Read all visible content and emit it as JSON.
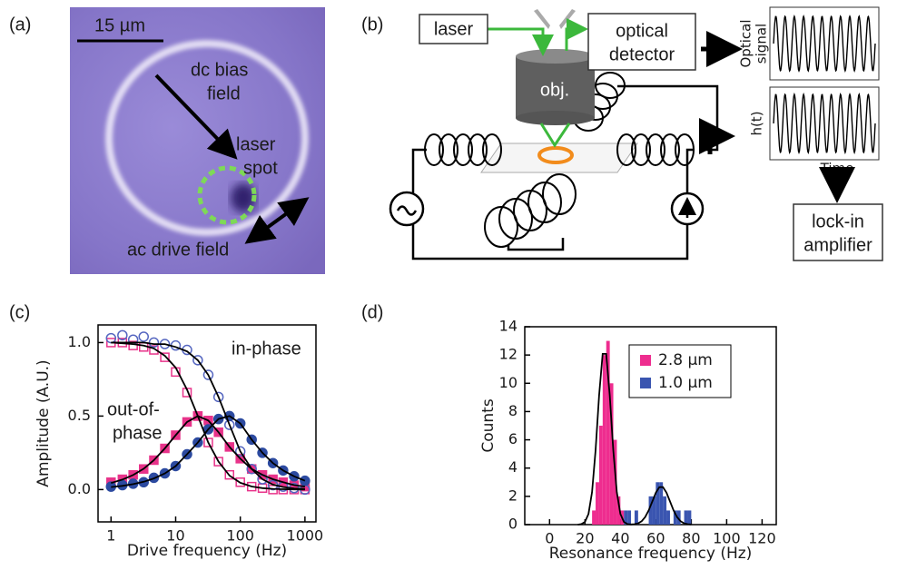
{
  "panels": {
    "a": {
      "label": "(a)",
      "scale_bar": "15 µm",
      "dc_bias": [
        "dc bias",
        "field"
      ],
      "laser_spot": [
        "laser",
        "spot"
      ],
      "ac_drive": "ac drive field"
    },
    "b": {
      "label": "(b)",
      "laser": "laser",
      "detector": [
        "optical",
        "detector"
      ],
      "objective": "obj.",
      "optical_signal": [
        "Optical",
        "signal"
      ],
      "h_t": "h(t)",
      "time": "Time",
      "lockin": [
        "lock-in",
        "amplifier"
      ]
    }
  },
  "chart_data": [
    {
      "type": "scatter",
      "label": "(c)",
      "x_label": "Drive frequency (Hz)",
      "y_label": "Amplitude (A.U.)",
      "annotations": [
        "in-phase",
        "out-of-",
        "phase"
      ],
      "xscale": "log",
      "xlim": [
        0.63,
        1480
      ],
      "xticks": [
        1,
        10,
        100,
        1000
      ],
      "ylim": [
        -0.22,
        1.12
      ],
      "yticks": [
        {
          "value": 0,
          "label": "0.0"
        },
        0.5,
        {
          "value": 1,
          "label": "1.0"
        }
      ],
      "x": [
        1,
        1.5,
        2.2,
        3.2,
        4.6,
        6.8,
        10,
        15,
        22,
        32,
        46,
        68,
        100,
        150,
        220,
        320,
        460,
        680,
        1000
      ],
      "series": [
        {
          "color": "#e8338a",
          "marker": "open-square",
          "values": [
            1.0,
            1.0,
            0.98,
            0.97,
            0.95,
            0.9,
            0.8,
            0.66,
            0.5,
            0.32,
            0.19,
            0.1,
            0.05,
            0.02,
            0.01,
            0.0,
            0.0,
            0.0,
            0.0
          ]
        },
        {
          "color": "#e8338a",
          "marker": "filled-square",
          "values": [
            0.05,
            0.07,
            0.1,
            0.14,
            0.2,
            0.28,
            0.37,
            0.46,
            0.5,
            0.47,
            0.39,
            0.29,
            0.21,
            0.14,
            0.1,
            0.07,
            0.05,
            0.03,
            0.02
          ]
        },
        {
          "color": "#5566c0",
          "marker": "open-circle",
          "values": [
            1.03,
            1.05,
            1.02,
            1.04,
            1.0,
            0.99,
            0.98,
            0.95,
            0.88,
            0.78,
            0.63,
            0.44,
            0.26,
            0.14,
            0.07,
            0.03,
            0.02,
            0.01,
            0.0
          ]
        },
        {
          "color": "#2c4aa0",
          "marker": "filled-circle",
          "values": [
            0.02,
            0.03,
            0.04,
            0.05,
            0.08,
            0.11,
            0.16,
            0.24,
            0.32,
            0.41,
            0.48,
            0.5,
            0.45,
            0.34,
            0.25,
            0.18,
            0.13,
            0.09,
            0.06
          ]
        }
      ],
      "fits": [
        {
          "color": "#000000",
          "values": [
            1.0,
            0.995,
            0.99,
            0.98,
            0.96,
            0.91,
            0.83,
            0.68,
            0.5,
            0.32,
            0.19,
            0.095,
            0.046,
            0.021,
            0.01,
            0.005,
            0.002,
            0.001,
            0.0
          ]
        },
        {
          "color": "#000000",
          "values": [
            0.045,
            0.068,
            0.099,
            0.142,
            0.2,
            0.28,
            0.37,
            0.46,
            0.5,
            0.47,
            0.39,
            0.29,
            0.21,
            0.14,
            0.1,
            0.07,
            0.05,
            0.03,
            0.02
          ]
        },
        {
          "color": "#000000",
          "values": [
            1.0,
            1.0,
            1.0,
            1.0,
            0.99,
            0.99,
            0.97,
            0.94,
            0.88,
            0.78,
            0.63,
            0.44,
            0.26,
            0.14,
            0.07,
            0.034,
            0.017,
            0.008,
            0.004
          ]
        },
        {
          "color": "#000000",
          "values": [
            0.017,
            0.025,
            0.037,
            0.053,
            0.076,
            0.11,
            0.16,
            0.24,
            0.32,
            0.41,
            0.48,
            0.5,
            0.45,
            0.34,
            0.25,
            0.18,
            0.13,
            0.09,
            0.06
          ]
        }
      ]
    },
    {
      "type": "histogram",
      "label": "(d)",
      "x_label": "Resonance frequency (Hz)",
      "y_label": "Counts",
      "xlim": [
        -14,
        128
      ],
      "xticks": [
        0,
        20,
        40,
        60,
        80,
        100,
        120
      ],
      "ylim": [
        0,
        14
      ],
      "yticks": [
        0,
        2,
        4,
        6,
        8,
        10,
        12,
        14
      ],
      "legend_position": "upper right",
      "series": [
        {
          "name": "2.8 µm",
          "color": "#ee2d8f",
          "bins": [
            24,
            26,
            28,
            30,
            32,
            34,
            36,
            38,
            40,
            42
          ],
          "values": [
            1,
            3,
            7,
            12,
            13,
            10,
            6,
            2,
            1
          ]
        },
        {
          "name": "1.0 µm",
          "color": "#3a55b0",
          "bins": [
            42,
            44,
            46,
            48,
            50,
            52,
            54,
            56,
            58,
            60,
            62,
            64,
            66,
            68,
            70,
            72,
            74,
            76,
            78,
            80
          ],
          "values": [
            1,
            1,
            0,
            1,
            0,
            0,
            0,
            2,
            2,
            3,
            3,
            2,
            1,
            0,
            1,
            1,
            0,
            1,
            1
          ]
        }
      ],
      "fit": {
        "color": "#000000",
        "x": [
          16,
          18,
          20,
          22,
          24,
          26,
          28,
          30,
          32,
          34,
          36,
          38,
          40,
          42,
          44,
          46,
          48,
          50,
          52,
          54,
          56,
          58,
          60,
          62,
          64,
          66,
          68,
          70,
          72,
          74,
          76,
          78,
          80
        ],
        "values": [
          0,
          0.04,
          0.19,
          0.76,
          2.29,
          5.26,
          9.16,
          12.08,
          12.08,
          9.16,
          5.26,
          2.29,
          0.76,
          0.19,
          0.04,
          0.01,
          0.03,
          0.09,
          0.24,
          0.53,
          1.01,
          1.64,
          2.26,
          2.65,
          2.65,
          2.26,
          1.64,
          1.01,
          0.53,
          0.24,
          0.09,
          0.03,
          0.01
        ]
      }
    }
  ]
}
